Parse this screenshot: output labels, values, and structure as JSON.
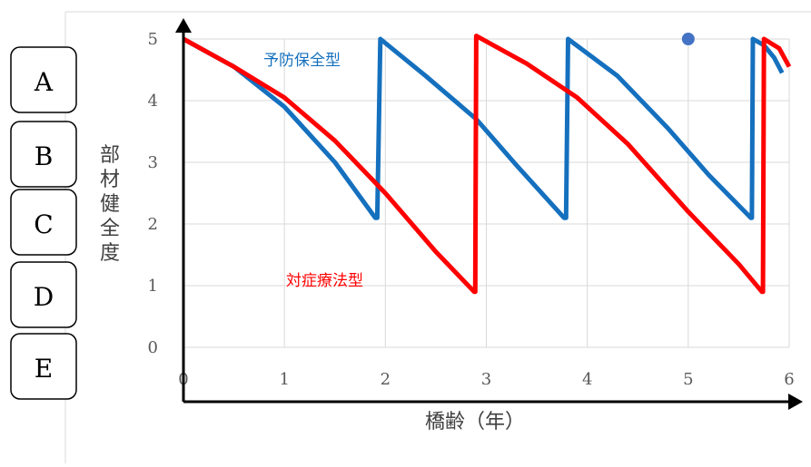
{
  "grade_labels": [
    "A",
    "B",
    "C",
    "D",
    "E"
  ],
  "chart_data": {
    "type": "line",
    "xlabel": "橋齢（年）",
    "ylabel": "部材健全度",
    "xlim": [
      0,
      6
    ],
    "ylim": [
      0,
      5
    ],
    "x_ticks": [
      "0",
      "1",
      "2",
      "3",
      "4",
      "5",
      "6"
    ],
    "y_ticks": [
      "0",
      "1",
      "2",
      "3",
      "4",
      "5"
    ],
    "grid": true,
    "colors": {
      "series_blue": "#1570BE",
      "series_red": "#FF0000",
      "marker": "#4472C4"
    },
    "series": [
      {
        "name": "予防保全型",
        "color": "#1570BE",
        "x": [
          0,
          0.5,
          1.0,
          1.5,
          1.9,
          1.92,
          1.95,
          2.4,
          2.9,
          3.3,
          3.77,
          3.79,
          3.81,
          4.3,
          4.8,
          5.2,
          5.62,
          5.63,
          5.64,
          5.75,
          5.85,
          5.93
        ],
        "y": [
          5,
          4.55,
          3.9,
          3.0,
          2.1,
          2.1,
          5,
          4.4,
          3.7,
          2.95,
          2.1,
          2.1,
          5,
          4.4,
          3.55,
          2.8,
          2.1,
          2.1,
          5,
          4.9,
          4.7,
          4.45
        ]
      },
      {
        "name": "対症療法型",
        "color": "#FF0000",
        "x": [
          0,
          0.5,
          1.0,
          1.5,
          2.0,
          2.5,
          2.88,
          2.89,
          2.9,
          3.4,
          3.9,
          4.4,
          5.0,
          5.5,
          5.73,
          5.74,
          5.75,
          5.9,
          6.0
        ],
        "y": [
          5,
          4.55,
          4.05,
          3.35,
          2.5,
          1.55,
          0.9,
          0.9,
          5.05,
          4.6,
          4.05,
          3.3,
          2.2,
          1.35,
          0.9,
          0.9,
          5.0,
          4.85,
          4.55
        ]
      }
    ],
    "marker_point": {
      "x": 5.0,
      "y": 5.0
    }
  }
}
